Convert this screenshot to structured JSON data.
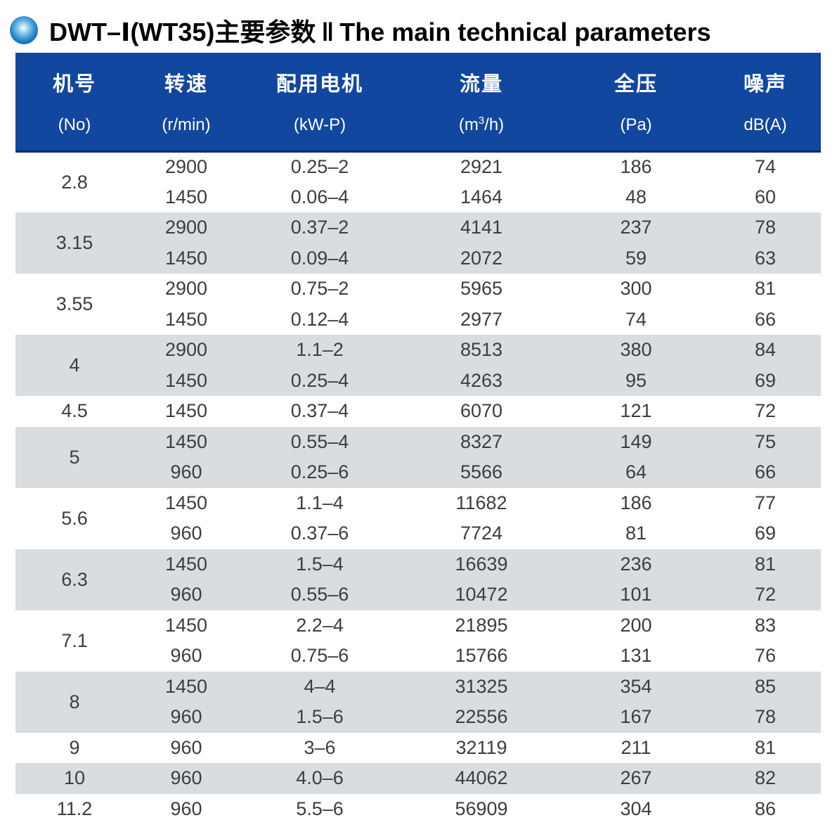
{
  "title": {
    "cn": "DWT–Ⅰ(WT35)主要参数",
    "separator": "‖",
    "en": "The main technical parameters"
  },
  "icons": {
    "bullet": "blue-sphere-bullet-icon"
  },
  "colors": {
    "header_bg": "#11479e",
    "header_bottom_border": "#0d2f6b",
    "band_gray": "#d9dde0",
    "band_white": "#ffffff",
    "body_text": "#3d3d3d",
    "header_text": "#ffffff"
  },
  "table": {
    "columns": [
      {
        "label": "机号",
        "unit": "(No)"
      },
      {
        "label": "转速",
        "unit": "(r/min)"
      },
      {
        "label": "配用电机",
        "unit": "(kW-P)"
      },
      {
        "label": "流量",
        "unit_pre": "(m",
        "unit_sup": "3",
        "unit_post": "/h)"
      },
      {
        "label": "全压",
        "unit": "(Pa)"
      },
      {
        "label": "噪声",
        "unit": "dB(A)"
      }
    ],
    "col_keys": [
      "speed-rpm",
      "motor-kw-p",
      "flow-m3h",
      "pressure-pa",
      "noise-dba"
    ],
    "groups": [
      {
        "no": "2.8",
        "rows": [
          [
            "2900",
            "0.25–2",
            "2921",
            "186",
            "74"
          ],
          [
            "1450",
            "0.06–4",
            "1464",
            "48",
            "60"
          ]
        ]
      },
      {
        "no": "3.15",
        "rows": [
          [
            "2900",
            "0.37–2",
            "4141",
            "237",
            "78"
          ],
          [
            "1450",
            "0.09–4",
            "2072",
            "59",
            "63"
          ]
        ]
      },
      {
        "no": "3.55",
        "rows": [
          [
            "2900",
            "0.75–2",
            "5965",
            "300",
            "81"
          ],
          [
            "1450",
            "0.12–4",
            "2977",
            "74",
            "66"
          ]
        ]
      },
      {
        "no": "4",
        "rows": [
          [
            "2900",
            "1.1–2",
            "8513",
            "380",
            "84"
          ],
          [
            "1450",
            "0.25–4",
            "4263",
            "95",
            "69"
          ]
        ]
      },
      {
        "no": "4.5",
        "rows": [
          [
            "1450",
            "0.37–4",
            "6070",
            "121",
            "72"
          ]
        ]
      },
      {
        "no": "5",
        "rows": [
          [
            "1450",
            "0.55–4",
            "8327",
            "149",
            "75"
          ],
          [
            "960",
            "0.25–6",
            "5566",
            "64",
            "66"
          ]
        ]
      },
      {
        "no": "5.6",
        "rows": [
          [
            "1450",
            "1.1–4",
            "11682",
            "186",
            "77"
          ],
          [
            "960",
            "0.37–6",
            "7724",
            "81",
            "69"
          ]
        ]
      },
      {
        "no": "6.3",
        "rows": [
          [
            "1450",
            "1.5–4",
            "16639",
            "236",
            "81"
          ],
          [
            "960",
            "0.55–6",
            "10472",
            "101",
            "72"
          ]
        ]
      },
      {
        "no": "7.1",
        "rows": [
          [
            "1450",
            "2.2–4",
            "21895",
            "200",
            "83"
          ],
          [
            "960",
            "0.75–6",
            "15766",
            "131",
            "76"
          ]
        ]
      },
      {
        "no": "8",
        "rows": [
          [
            "1450",
            "4–4",
            "31325",
            "354",
            "85"
          ],
          [
            "960",
            "1.5–6",
            "22556",
            "167",
            "78"
          ]
        ]
      },
      {
        "no": "9",
        "rows": [
          [
            "960",
            "3–6",
            "32119",
            "211",
            "81"
          ]
        ]
      },
      {
        "no": "10",
        "rows": [
          [
            "960",
            "4.0–6",
            "44062",
            "267",
            "82"
          ]
        ]
      },
      {
        "no": "11.2",
        "rows": [
          [
            "960",
            "5.5–6",
            "56909",
            "304",
            "86"
          ]
        ]
      }
    ]
  }
}
